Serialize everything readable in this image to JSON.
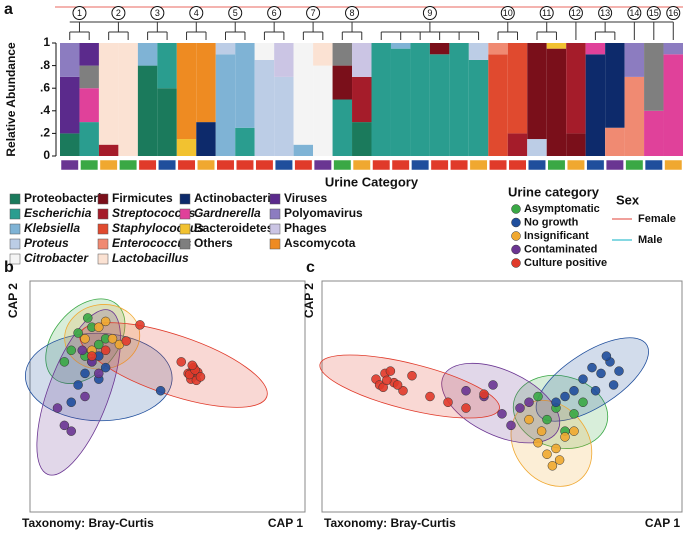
{
  "chart_data": [
    {
      "type": "stacked_bar",
      "panel_label": "a",
      "ylabel": "Relative Abundance",
      "xlabel": "Urine Category",
      "ylim": [
        0,
        1
      ],
      "yticks": [
        0,
        {
          "value": 0.2,
          "label": ".2"
        },
        {
          "value": 0.4,
          "label": ".4"
        },
        {
          "value": 0.6,
          "label": ".6"
        },
        {
          "value": 0.8,
          "label": ".8"
        },
        1
      ],
      "annotations": [
        "1",
        "2",
        "3",
        "4",
        "5",
        "6",
        "7",
        "8",
        "9",
        "10",
        "11",
        "12",
        "13",
        "14",
        "15",
        "16"
      ],
      "categories": [
        null,
        null,
        null,
        null,
        null,
        null,
        null,
        null,
        null,
        null,
        null,
        null,
        null,
        null,
        null,
        null,
        null,
        null,
        null,
        null,
        null,
        null,
        null,
        null,
        null,
        null,
        null,
        null,
        null,
        null,
        null,
        null
      ],
      "series": [
        {
          "name": "Proteobacteria",
          "color": "#1b7a5c",
          "values": [
            0.2,
            0,
            0,
            0,
            0.8,
            0.6,
            0,
            0,
            0,
            0,
            0,
            0,
            0,
            0,
            0,
            0.3,
            0,
            0,
            0,
            0,
            0,
            0,
            0,
            0,
            0,
            0,
            0,
            0,
            0,
            0,
            0,
            0
          ]
        },
        {
          "name": "Escherichia",
          "color": "#2a9d8f",
          "values": [
            0,
            0.3,
            0,
            0,
            0,
            0.4,
            0,
            0,
            0,
            0.25,
            0,
            0,
            0,
            0,
            0.5,
            0,
            1,
            0.95,
            1,
            0.9,
            1,
            0.85,
            0,
            0,
            0,
            0,
            0,
            0,
            0,
            0,
            0,
            0
          ]
        },
        {
          "name": "Klebsiella",
          "color": "#7fb3d5",
          "values": [
            0,
            0,
            0,
            0,
            0.2,
            0,
            0,
            0,
            0.9,
            0.75,
            0,
            0,
            0.1,
            0,
            0,
            0,
            0,
            0.05,
            0,
            0,
            0,
            0,
            0,
            0,
            0,
            0,
            0,
            0,
            0,
            0,
            0,
            0
          ]
        },
        {
          "name": "Proteus",
          "color": "#bccde6",
          "values": [
            0,
            0,
            0,
            0,
            0,
            0,
            0,
            0,
            0.1,
            0,
            0.85,
            0.7,
            0,
            0,
            0,
            0,
            0,
            0,
            0,
            0,
            0,
            0.15,
            0,
            0,
            0.15,
            0,
            0,
            0,
            0,
            0,
            0,
            0
          ]
        },
        {
          "name": "Citrobacter",
          "color": "#f4f4f4",
          "values": [
            0,
            0,
            0,
            0,
            0,
            0,
            0,
            0,
            0,
            0,
            0.15,
            0,
            0.9,
            0.8,
            0,
            0,
            0,
            0,
            0,
            0,
            0,
            0,
            0,
            0,
            0,
            0,
            0,
            0,
            0,
            0,
            0,
            0
          ]
        },
        {
          "name": "Firmicutes",
          "color": "#7a0f1a",
          "values": [
            0,
            0,
            0,
            0,
            0,
            0,
            0,
            0,
            0,
            0,
            0,
            0,
            0,
            0,
            0.3,
            0,
            0,
            0,
            0,
            0.1,
            0,
            0,
            0,
            0,
            0.85,
            0.95,
            0.2,
            0,
            0,
            0,
            0,
            0
          ]
        },
        {
          "name": "Streptococcus",
          "color": "#a51c2a",
          "values": [
            0,
            0,
            0.1,
            0,
            0,
            0,
            0,
            0,
            0,
            0,
            0,
            0,
            0,
            0,
            0,
            0.4,
            0,
            0,
            0,
            0,
            0,
            0,
            0,
            0.2,
            0,
            0,
            0.8,
            0,
            0,
            0,
            0,
            0
          ]
        },
        {
          "name": "Staphylococcus",
          "color": "#e04a2f",
          "values": [
            0,
            0,
            0,
            0,
            0,
            0,
            0,
            0,
            0,
            0,
            0,
            0,
            0,
            0,
            0,
            0,
            0,
            0,
            0,
            0,
            0,
            0,
            0.9,
            0.8,
            0,
            0,
            0,
            0,
            0,
            0,
            0,
            0
          ]
        },
        {
          "name": "Enterococcus",
          "color": "#f08a72",
          "values": [
            0,
            0,
            0,
            0,
            0,
            0,
            0,
            0,
            0,
            0,
            0,
            0,
            0,
            0,
            0,
            0,
            0,
            0,
            0,
            0,
            0,
            0,
            0.1,
            0,
            0,
            0,
            0,
            0,
            0.25,
            0.7,
            0,
            0
          ]
        },
        {
          "name": "Lactobacillus",
          "color": "#fbe2d3",
          "values": [
            0,
            0,
            0.9,
            1,
            0,
            0,
            0,
            0,
            0,
            0,
            0,
            0,
            0,
            0.2,
            0,
            0,
            0,
            0,
            0,
            0,
            0,
            0,
            0,
            0,
            0,
            0,
            0,
            0,
            0,
            0,
            0,
            0
          ]
        },
        {
          "name": "Actinobacteria",
          "color": "#0d2a6b",
          "values": [
            0,
            0,
            0,
            0,
            0,
            0,
            0,
            0.3,
            0,
            0,
            0,
            0,
            0,
            0,
            0,
            0,
            0,
            0,
            0,
            0,
            0,
            0,
            0,
            0,
            0,
            0,
            0,
            0.9,
            0.75,
            0,
            0,
            0
          ]
        },
        {
          "name": "Gardnerella",
          "color": "#e0419a",
          "values": [
            0,
            0.3,
            0,
            0,
            0,
            0,
            0,
            0,
            0,
            0,
            0,
            0,
            0,
            0,
            0,
            0,
            0,
            0,
            0,
            0,
            0,
            0,
            0,
            0,
            0,
            0,
            0,
            0.1,
            0,
            0,
            0.4,
            0.9
          ]
        },
        {
          "name": "Bacteroidetes",
          "color": "#f2c230",
          "values": [
            0,
            0,
            0,
            0,
            0,
            0,
            0.15,
            0,
            0,
            0,
            0,
            0,
            0,
            0,
            0,
            0,
            0,
            0,
            0,
            0,
            0,
            0,
            0,
            0,
            0,
            0.05,
            0,
            0,
            0,
            0,
            0,
            0
          ]
        },
        {
          "name": "Others",
          "color": "#7f7f7f",
          "values": [
            0,
            0.2,
            0,
            0,
            0,
            0,
            0,
            0,
            0,
            0,
            0,
            0,
            0,
            0,
            0.2,
            0,
            0,
            0,
            0,
            0,
            0,
            0,
            0,
            0,
            0,
            0,
            0,
            0,
            0,
            0,
            0.6,
            0
          ]
        },
        {
          "name": "Viruses",
          "color": "#5b2a8c",
          "values": [
            0.5,
            0.2,
            0,
            0,
            0,
            0,
            0,
            0,
            0,
            0,
            0,
            0,
            0,
            0,
            0,
            0,
            0,
            0,
            0,
            0,
            0,
            0,
            0,
            0,
            0,
            0,
            0,
            0,
            0,
            0,
            0,
            0
          ]
        },
        {
          "name": "Polyomavirus",
          "color": "#8c7cc0",
          "values": [
            0.3,
            0,
            0,
            0,
            0,
            0,
            0,
            0,
            0,
            0,
            0,
            0,
            0,
            0,
            0,
            0,
            0,
            0,
            0,
            0,
            0,
            0,
            0,
            0,
            0,
            0,
            0,
            0,
            0,
            0.3,
            0,
            0.1
          ]
        },
        {
          "name": "Phages",
          "color": "#cbc5e4",
          "values": [
            0,
            0,
            0,
            0,
            0,
            0,
            0,
            0,
            0,
            0,
            0,
            0.3,
            0,
            0,
            0,
            0.3,
            0,
            0,
            0,
            0,
            0,
            0,
            0,
            0,
            0,
            0,
            0,
            0,
            0,
            0,
            0,
            0
          ]
        },
        {
          "name": "Ascomycota",
          "color": "#ee8b22",
          "values": [
            0,
            0,
            0,
            0,
            0,
            0,
            0.85,
            0.7,
            0,
            0,
            0,
            0,
            0,
            0,
            0,
            0,
            0,
            0,
            0,
            0,
            0,
            0,
            0,
            0,
            0,
            0,
            0,
            0,
            0,
            0,
            0,
            0
          ]
        }
      ],
      "group_title": "Urine category",
      "groups": [
        {
          "name": "Asymptomatic",
          "color": "#3aa845"
        },
        {
          "name": "No growth",
          "color": "#1f4e9c"
        },
        {
          "name": "Insignificant",
          "color": "#f0a830"
        },
        {
          "name": "Contaminated",
          "color": "#6a3592"
        },
        {
          "name": "Culture positive",
          "color": "#e03a2a"
        }
      ],
      "sample_groups": [
        "Contaminated",
        "Asymptomatic",
        "Insignificant",
        "Asymptomatic",
        "Culture positive",
        "No growth",
        "Culture positive",
        "Insignificant",
        "Culture positive",
        "Culture positive",
        "Culture positive",
        "No growth",
        "Culture positive",
        "Contaminated",
        "Asymptomatic",
        "Insignificant",
        "Culture positive",
        "Culture positive",
        "No growth",
        "Culture positive",
        "Culture positive",
        "Insignificant",
        "Culture positive",
        "Culture positive",
        "No growth",
        "Asymptomatic",
        "Insignificant",
        "No growth",
        "Contaminated",
        "Asymptomatic",
        "No growth",
        "Insignificant"
      ],
      "sex_title": "Sex",
      "sex": [
        {
          "name": "Female",
          "color": "#e8675f"
        },
        {
          "name": "Male",
          "color": "#3cc0d0"
        }
      ]
    },
    {
      "type": "scatter",
      "panel_label": "b",
      "xlabel": "CAP 1",
      "ylabel": "CAP 2",
      "subtitle": "Taxonomy: Bray-Curtis",
      "xlim": [
        -1,
        1
      ],
      "ylim": [
        -1,
        1
      ],
      "series": [
        {
          "color": "#3aa845",
          "x": [
            -0.65,
            -0.55,
            -0.5,
            -0.7,
            -0.6,
            -0.45,
            -0.58,
            -0.75
          ],
          "y": [
            0.55,
            0.6,
            0.45,
            0.4,
            0.35,
            0.5,
            0.68,
            0.3
          ]
        },
        {
          "color": "#1f4e9c",
          "x": [
            -0.6,
            -0.5,
            -0.55,
            -0.65,
            -0.45,
            -0.7,
            -0.05,
            -0.5
          ],
          "y": [
            0.2,
            0.15,
            0.3,
            0.1,
            0.25,
            -0.05,
            0.05,
            0.35
          ]
        },
        {
          "color": "#f0a830",
          "x": [
            -0.5,
            -0.4,
            -0.55,
            -0.35,
            -0.45,
            -0.6
          ],
          "y": [
            0.6,
            0.5,
            0.4,
            0.45,
            0.65,
            0.5
          ]
        },
        {
          "color": "#6a3592",
          "x": [
            -0.8,
            -0.75,
            -0.7,
            -0.55,
            -0.62,
            -0.5,
            -0.6
          ],
          "y": [
            -0.1,
            -0.25,
            -0.3,
            0.3,
            0.4,
            0.2,
            0.0
          ]
        },
        {
          "color": "#e03a2a",
          "x": [
            0.15,
            0.18,
            0.2,
            0.22,
            0.17,
            0.19,
            0.21,
            0.16,
            0.2,
            0.24,
            0.18,
            -0.2,
            -0.3,
            -0.55,
            -0.45,
            0.1
          ],
          "y": [
            0.2,
            0.22,
            0.18,
            0.21,
            0.15,
            0.25,
            0.14,
            0.19,
            0.23,
            0.17,
            0.27,
            0.62,
            0.48,
            0.35,
            0.4,
            0.3
          ]
        }
      ]
    },
    {
      "type": "scatter",
      "panel_label": "c",
      "xlabel": "CAP 1",
      "ylabel": "CAP 2",
      "subtitle": "Taxonomy: Bray-Curtis",
      "xlim": [
        -1,
        1
      ],
      "ylim": [
        -1,
        1
      ],
      "series": [
        {
          "color": "#3aa845",
          "x": [
            0.3,
            0.4,
            0.25,
            0.45,
            0.35,
            0.2
          ],
          "y": [
            -0.1,
            -0.15,
            -0.2,
            -0.05,
            -0.3,
            0.0
          ]
        },
        {
          "color": "#1f4e9c",
          "x": [
            0.6,
            0.55,
            0.5,
            0.62,
            0.45,
            0.4,
            0.58,
            0.35,
            0.52,
            0.65,
            0.3
          ],
          "y": [
            0.3,
            0.2,
            0.25,
            0.1,
            0.15,
            0.05,
            0.35,
            0.0,
            0.05,
            0.22,
            -0.05
          ]
        },
        {
          "color": "#f0a830",
          "x": [
            0.2,
            0.25,
            0.3,
            0.22,
            0.35,
            0.28,
            0.15,
            0.4,
            0.32
          ],
          "y": [
            -0.4,
            -0.5,
            -0.45,
            -0.3,
            -0.35,
            -0.6,
            -0.2,
            -0.3,
            -0.55
          ]
        },
        {
          "color": "#6a3592",
          "x": [
            -0.1,
            0.0,
            0.1,
            -0.2,
            0.05,
            0.15,
            -0.05
          ],
          "y": [
            0.0,
            -0.15,
            -0.1,
            0.05,
            -0.25,
            -0.05,
            0.1
          ]
        },
        {
          "color": "#e03a2a",
          "x": [
            -0.7,
            -0.68,
            -0.65,
            -0.6,
            -0.55,
            -0.5,
            -0.66,
            -0.62,
            -0.4,
            -0.3,
            -0.2,
            -0.1,
            -0.64,
            -0.58
          ],
          "y": [
            0.15,
            0.1,
            0.2,
            0.12,
            0.05,
            0.18,
            0.08,
            0.22,
            0.0,
            -0.05,
            -0.1,
            0.02,
            0.14,
            0.1
          ]
        }
      ]
    }
  ]
}
